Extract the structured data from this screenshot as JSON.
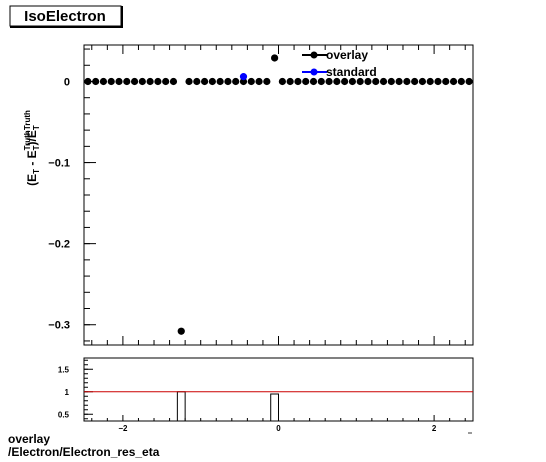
{
  "title": "IsoElectron",
  "footer": {
    "line1": "overlay",
    "line2": "/Electron/Electron_res_eta"
  },
  "colors": {
    "overlay": "#000000",
    "standard": "#0000ff",
    "ratio_line": "#cc0000"
  },
  "chart_data": [
    {
      "type": "scatter",
      "ylabel_parts": {
        "open": "(E",
        "sub1": "T",
        "minus": " - E",
        "sup2": "Truth",
        "sub2": "T",
        "close": ")/E",
        "sup3": "Truth",
        "sub3": "T"
      },
      "xlim": [
        -2.5,
        2.5
      ],
      "ylim": [
        -0.325,
        0.045
      ],
      "yticks": [
        0,
        -0.1,
        -0.2,
        -0.3
      ],
      "ytick_labels": [
        "0",
        "−0.1",
        "−0.2",
        "−0.3"
      ],
      "legend": "top-right",
      "series": [
        {
          "name": "overlay",
          "color": "#000000",
          "x": [
            -2.45,
            -2.35,
            -2.25,
            -2.15,
            -2.05,
            -1.95,
            -1.85,
            -1.75,
            -1.65,
            -1.55,
            -1.45,
            -1.35,
            -1.25,
            -1.15,
            -1.05,
            -0.95,
            -0.85,
            -0.75,
            -0.65,
            -0.55,
            -0.45,
            -0.35,
            -0.25,
            -0.15,
            -0.05,
            0.05,
            0.15,
            0.25,
            0.35,
            0.45,
            0.55,
            0.65,
            0.75,
            0.85,
            0.95,
            1.05,
            1.15,
            1.25,
            1.35,
            1.45,
            1.55,
            1.65,
            1.75,
            1.85,
            1.95,
            2.05,
            2.15,
            2.25,
            2.35,
            2.45
          ],
          "y": [
            0,
            0,
            0,
            0,
            0,
            0,
            0,
            0,
            0,
            0,
            0,
            0,
            -0.308,
            0,
            0,
            0,
            0,
            0,
            0,
            0,
            0,
            0,
            0,
            0,
            0.029,
            0,
            0,
            0,
            0,
            0,
            0,
            0,
            0,
            0,
            0,
            0,
            0,
            0,
            0,
            0,
            0,
            0,
            0,
            0,
            0,
            0,
            0,
            0,
            0,
            0
          ]
        },
        {
          "name": "standard",
          "color": "#0000ff",
          "x": [
            -0.45
          ],
          "y": [
            0.006
          ]
        }
      ]
    },
    {
      "type": "bar",
      "xlim": [
        -2.5,
        2.5
      ],
      "ylim": [
        0.35,
        1.75
      ],
      "yticks": [
        0.5,
        1,
        1.5
      ],
      "ytick_labels": [
        "0.5",
        "1",
        "1.5"
      ],
      "xticks": [
        -2,
        0,
        2
      ],
      "xtick_labels": [
        "−2",
        "0",
        "2"
      ],
      "reference_line": 1,
      "bins": [
        {
          "x0": -1.3,
          "x1": -1.2,
          "value": 1
        },
        {
          "x0": -0.1,
          "x1": 0.0,
          "value": 0.95
        }
      ]
    }
  ]
}
